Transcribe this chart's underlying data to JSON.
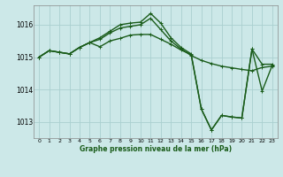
{
  "background_color": "#cce8e8",
  "grid_color": "#aad0d0",
  "line_color": "#1a5c1a",
  "title": "Graphe pression niveau de la mer (hPa)",
  "xlim": [
    -0.5,
    23.5
  ],
  "ylim": [
    1012.5,
    1016.6
  ],
  "yticks": [
    1013,
    1014,
    1015,
    1016
  ],
  "xticks": [
    0,
    1,
    2,
    3,
    4,
    5,
    6,
    7,
    8,
    9,
    10,
    11,
    12,
    13,
    14,
    15,
    16,
    17,
    18,
    19,
    20,
    21,
    22,
    23
  ],
  "series": [
    {
      "data": [
        1015.0,
        1015.2,
        1015.15,
        1015.1,
        1015.3,
        1015.45,
        1015.55,
        1015.75,
        1015.9,
        1015.95,
        1016.0,
        1016.2,
        1015.85,
        1015.5,
        1015.25,
        1015.05,
        1014.9,
        1014.8,
        1014.72,
        1014.67,
        1014.62,
        1014.58,
        1014.68,
        1014.72
      ],
      "linewidth": 1.0
    },
    {
      "data": [
        1015.0,
        1015.2,
        1015.15,
        1015.1,
        1015.3,
        1015.45,
        1015.6,
        1015.8,
        1016.0,
        1016.05,
        1016.08,
        1016.35,
        1016.05,
        1015.6,
        1015.3,
        1015.1,
        1013.4,
        1012.75,
        1013.2,
        1013.15,
        1013.12,
        1015.25,
        1013.95,
        1014.75
      ],
      "linewidth": 1.0
    },
    {
      "data": [
        1015.0,
        1015.2,
        1015.15,
        1015.1,
        1015.3,
        1015.45,
        1015.32,
        1015.5,
        1015.58,
        1015.68,
        1015.7,
        1015.7,
        1015.55,
        1015.4,
        1015.22,
        1015.08,
        1013.4,
        1012.75,
        1013.2,
        1013.15,
        1013.12,
        1015.25,
        1014.78,
        1014.78
      ],
      "linewidth": 1.0
    }
  ]
}
